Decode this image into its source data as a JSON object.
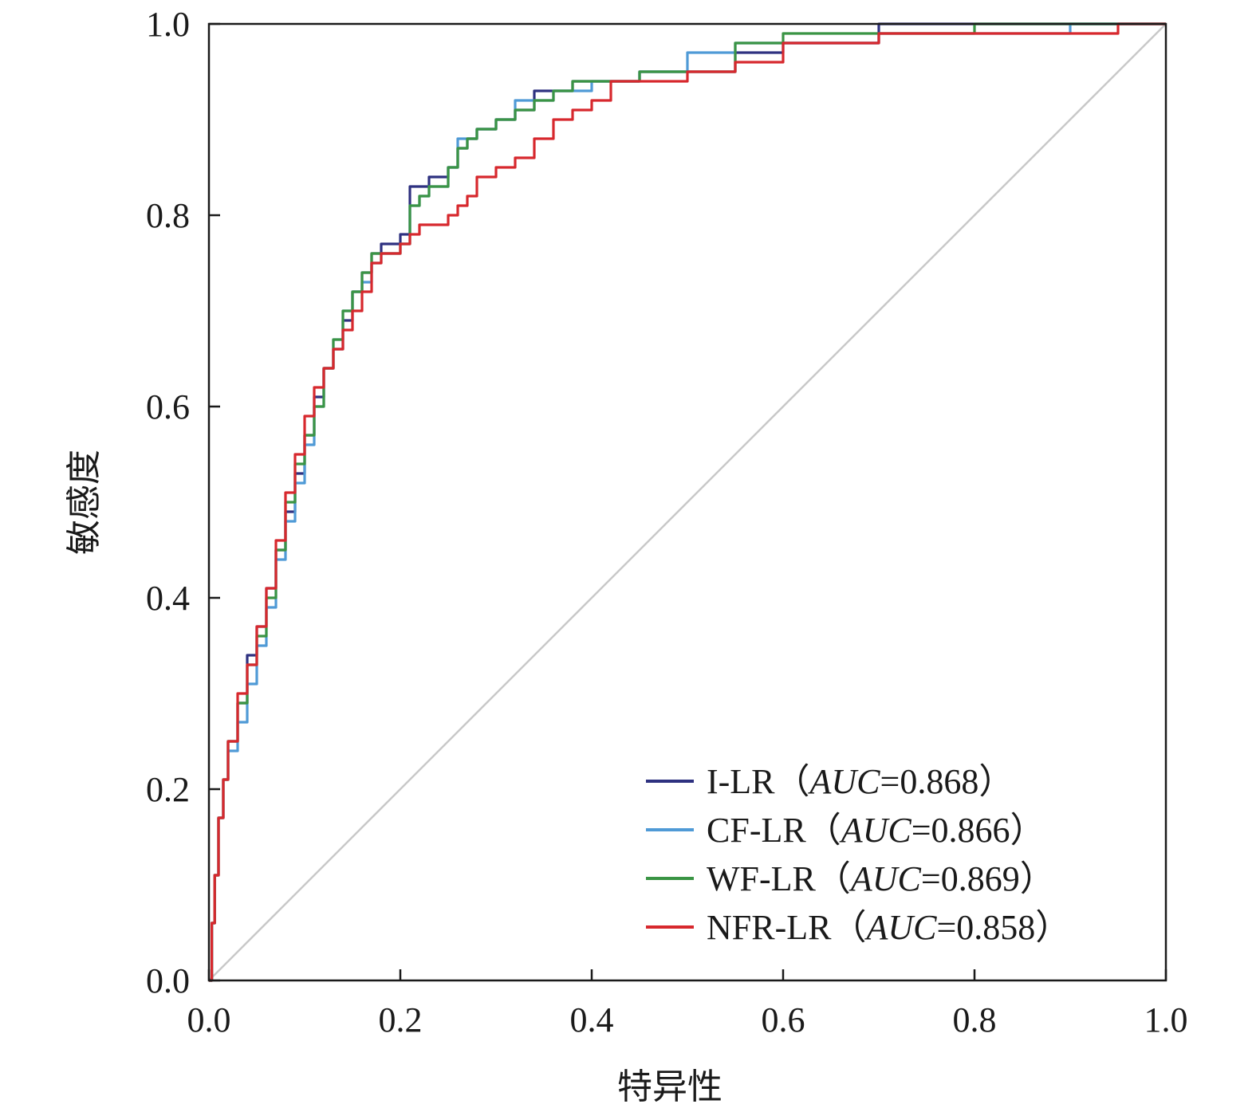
{
  "chart_data": {
    "type": "line",
    "title": "",
    "xlabel": "特异性",
    "ylabel": "敏感度",
    "xlim": [
      0,
      1
    ],
    "ylim": [
      0,
      1
    ],
    "xticks": [
      "0.0",
      "0.2",
      "0.4",
      "0.6",
      "0.8",
      "1.0"
    ],
    "yticks": [
      "0.0",
      "0.2",
      "0.4",
      "0.6",
      "0.8",
      "1.0"
    ],
    "legend_position": "bottom-right",
    "reference_line": {
      "name": "diagonal",
      "color": "#c8c8c8",
      "x": [
        0,
        1
      ],
      "y": [
        0,
        1
      ]
    },
    "series": [
      {
        "name": "I-LR",
        "auc_label": "AUC",
        "auc_value": "=0.868",
        "color": "#2e3180",
        "x": [
          0,
          0.003,
          0.006,
          0.01,
          0.015,
          0.02,
          0.03,
          0.04,
          0.05,
          0.06,
          0.07,
          0.08,
          0.09,
          0.1,
          0.11,
          0.12,
          0.13,
          0.14,
          0.15,
          0.16,
          0.17,
          0.18,
          0.2,
          0.21,
          0.22,
          0.23,
          0.25,
          0.26,
          0.27,
          0.28,
          0.3,
          0.32,
          0.34,
          0.36,
          0.38,
          0.4,
          0.45,
          0.5,
          0.55,
          0.6,
          0.7,
          0.8,
          0.9,
          0.95,
          1.0
        ],
        "y": [
          0,
          0.06,
          0.11,
          0.17,
          0.21,
          0.25,
          0.29,
          0.34,
          0.37,
          0.41,
          0.45,
          0.49,
          0.53,
          0.57,
          0.61,
          0.64,
          0.66,
          0.69,
          0.72,
          0.74,
          0.76,
          0.77,
          0.78,
          0.83,
          0.83,
          0.84,
          0.85,
          0.87,
          0.88,
          0.89,
          0.9,
          0.91,
          0.93,
          0.93,
          0.94,
          0.94,
          0.95,
          0.95,
          0.97,
          0.98,
          1.0,
          1.0,
          1.0,
          1.0,
          1.0
        ]
      },
      {
        "name": "CF-LR",
        "auc_label": "AUC",
        "auc_value": "=0.866",
        "color": "#4f9ad6",
        "x": [
          0,
          0.003,
          0.006,
          0.01,
          0.015,
          0.02,
          0.03,
          0.04,
          0.05,
          0.06,
          0.07,
          0.08,
          0.09,
          0.1,
          0.11,
          0.12,
          0.13,
          0.14,
          0.15,
          0.16,
          0.17,
          0.18,
          0.2,
          0.21,
          0.22,
          0.23,
          0.25,
          0.26,
          0.27,
          0.28,
          0.3,
          0.32,
          0.34,
          0.36,
          0.38,
          0.4,
          0.45,
          0.5,
          0.55,
          0.6,
          0.7,
          0.8,
          0.81,
          0.9,
          0.95,
          1.0
        ],
        "y": [
          0,
          0.06,
          0.11,
          0.17,
          0.21,
          0.24,
          0.27,
          0.31,
          0.35,
          0.39,
          0.44,
          0.48,
          0.52,
          0.56,
          0.6,
          0.64,
          0.67,
          0.7,
          0.72,
          0.73,
          0.75,
          0.76,
          0.77,
          0.81,
          0.82,
          0.83,
          0.85,
          0.88,
          0.88,
          0.89,
          0.9,
          0.92,
          0.92,
          0.93,
          0.93,
          0.94,
          0.95,
          0.97,
          0.98,
          0.98,
          0.99,
          0.99,
          0.99,
          1.0,
          1.0,
          1.0
        ]
      },
      {
        "name": "WF-LR",
        "auc_label": "AUC",
        "auc_value": "=0.869",
        "color": "#3a9444",
        "x": [
          0,
          0.003,
          0.006,
          0.01,
          0.015,
          0.02,
          0.03,
          0.04,
          0.05,
          0.06,
          0.07,
          0.08,
          0.09,
          0.1,
          0.11,
          0.12,
          0.13,
          0.14,
          0.15,
          0.16,
          0.17,
          0.18,
          0.2,
          0.21,
          0.22,
          0.23,
          0.25,
          0.26,
          0.27,
          0.28,
          0.3,
          0.32,
          0.34,
          0.36,
          0.38,
          0.4,
          0.45,
          0.5,
          0.55,
          0.6,
          0.7,
          0.8,
          0.9,
          0.95,
          1.0
        ],
        "y": [
          0,
          0.06,
          0.11,
          0.17,
          0.21,
          0.25,
          0.29,
          0.33,
          0.36,
          0.4,
          0.45,
          0.5,
          0.54,
          0.57,
          0.6,
          0.64,
          0.67,
          0.7,
          0.72,
          0.74,
          0.76,
          0.76,
          0.77,
          0.81,
          0.82,
          0.83,
          0.85,
          0.87,
          0.88,
          0.89,
          0.9,
          0.91,
          0.92,
          0.93,
          0.94,
          0.94,
          0.95,
          0.95,
          0.98,
          0.99,
          0.99,
          1.0,
          1.0,
          1.0,
          1.0
        ]
      },
      {
        "name": "NFR-LR",
        "auc_label": "AUC",
        "auc_value": "=0.858",
        "color": "#d7282d",
        "x": [
          0,
          0.003,
          0.006,
          0.01,
          0.015,
          0.02,
          0.03,
          0.04,
          0.05,
          0.06,
          0.07,
          0.08,
          0.09,
          0.1,
          0.11,
          0.12,
          0.13,
          0.14,
          0.15,
          0.16,
          0.17,
          0.18,
          0.2,
          0.21,
          0.22,
          0.25,
          0.26,
          0.27,
          0.28,
          0.3,
          0.32,
          0.34,
          0.36,
          0.38,
          0.4,
          0.42,
          0.45,
          0.5,
          0.55,
          0.6,
          0.7,
          0.8,
          0.9,
          0.95,
          1.0
        ],
        "y": [
          0,
          0.06,
          0.11,
          0.17,
          0.21,
          0.25,
          0.3,
          0.33,
          0.37,
          0.41,
          0.46,
          0.51,
          0.55,
          0.59,
          0.62,
          0.64,
          0.66,
          0.68,
          0.7,
          0.72,
          0.75,
          0.76,
          0.77,
          0.78,
          0.79,
          0.8,
          0.81,
          0.82,
          0.84,
          0.85,
          0.86,
          0.88,
          0.9,
          0.91,
          0.92,
          0.94,
          0.94,
          0.95,
          0.96,
          0.98,
          0.99,
          0.99,
          0.99,
          1.0,
          1.0
        ]
      }
    ]
  }
}
